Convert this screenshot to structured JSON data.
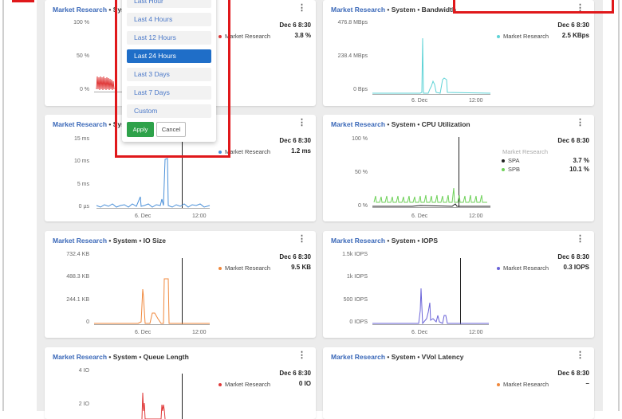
{
  "colors": {
    "red": "#e03a3a",
    "cyan": "#5fd3d6",
    "blue": "#4a90d9",
    "green": "#6fd15a",
    "orange": "#f0883c",
    "purple": "#6a63d8",
    "black": "#222222",
    "highlight": "#e0181b"
  },
  "cards": [
    {
      "source": "Market Research",
      "title_suffix": " • System • Latency",
      "title_visible": "Market Research • Sys",
      "y_ticks": [
        "100 %",
        "50 %",
        "0 %"
      ],
      "legend_date": "Dec 6 8:30",
      "legend": [
        {
          "name": "Market Research",
          "value": "3.8 %",
          "color_key": "red"
        }
      ]
    },
    {
      "source": "Market Research",
      "title_suffix": " • System • Bandwidth",
      "y_ticks": [
        "476.8 MBps",
        "238.4 MBps",
        "0 Bps"
      ],
      "x_ticks": [
        "6. Dec",
        "12:00"
      ],
      "legend_date": "Dec 6 8:30",
      "legend": [
        {
          "name": "Market Research",
          "value": "2.5 KBps",
          "color_key": "cyan"
        }
      ]
    },
    {
      "source": "Market Research",
      "title_suffix": " • Sys",
      "y_ticks": [
        "15 ms",
        "10 ms",
        "5 ms",
        "0 µs"
      ],
      "x_ticks": [
        "6. Dec",
        "12:00"
      ],
      "legend_date": "Dec 6 8:30",
      "legend": [
        {
          "name": "Market Research",
          "value": "1.2 ms",
          "color_key": "blue"
        }
      ]
    },
    {
      "source": "Market Research",
      "title_suffix": " • System • CPU Utilization",
      "y_ticks": [
        "100 %",
        "50 %",
        "0 %"
      ],
      "x_ticks": [
        "6. Dec",
        "12:00"
      ],
      "legend_date": "Dec 6 8:30",
      "legend_group": "Market Research",
      "legend": [
        {
          "name": "SPA",
          "value": "3.7 %",
          "color_key": "black"
        },
        {
          "name": "SPB",
          "value": "10.1 %",
          "color_key": "green"
        }
      ]
    },
    {
      "source": "Market Research",
      "title_suffix": " • System • IO Size",
      "y_ticks": [
        "732.4 KB",
        "488.3 KB",
        "244.1 KB",
        "0"
      ],
      "x_ticks": [
        "6. Dec",
        "12:00"
      ],
      "legend_date": "Dec 6 8:30",
      "legend": [
        {
          "name": "Market Research",
          "value": "9.5 KB",
          "color_key": "orange"
        }
      ]
    },
    {
      "source": "Market Research",
      "title_suffix": " • System • IOPS",
      "y_ticks": [
        "1.5k IOPS",
        "1k IOPS",
        "500 IOPS",
        "0 IOPS"
      ],
      "x_ticks": [
        "6. Dec",
        "12:00"
      ],
      "legend_date": "Dec 6 8:30",
      "legend": [
        {
          "name": "Market Research",
          "value": "0.3 IOPS",
          "color_key": "purple"
        }
      ]
    },
    {
      "source": "Market Research",
      "title_suffix": " • System • Queue Length",
      "y_ticks": [
        "4 IO",
        "2 IO"
      ],
      "legend_date": "Dec 6 8:30",
      "legend": [
        {
          "name": "Market Research",
          "value": "0 IO",
          "color_key": "red"
        }
      ]
    },
    {
      "source": "Market Research",
      "title_suffix": " • System • VVol Latency",
      "legend_date": "Dec 6 8:30",
      "legend": [
        {
          "name": "Market Research",
          "value": "–",
          "color_key": "orange"
        }
      ]
    }
  ],
  "time_range_menu": {
    "options": [
      "Last Hour",
      "Last 4 Hours",
      "Last 12 Hours",
      "Last 24 Hours",
      "Last 3 Days",
      "Last 7 Days",
      "Custom"
    ],
    "selected": "Last 24 Hours",
    "apply_label": "Apply",
    "cancel_label": "Cancel"
  },
  "menu_icon": "kebab-icon"
}
